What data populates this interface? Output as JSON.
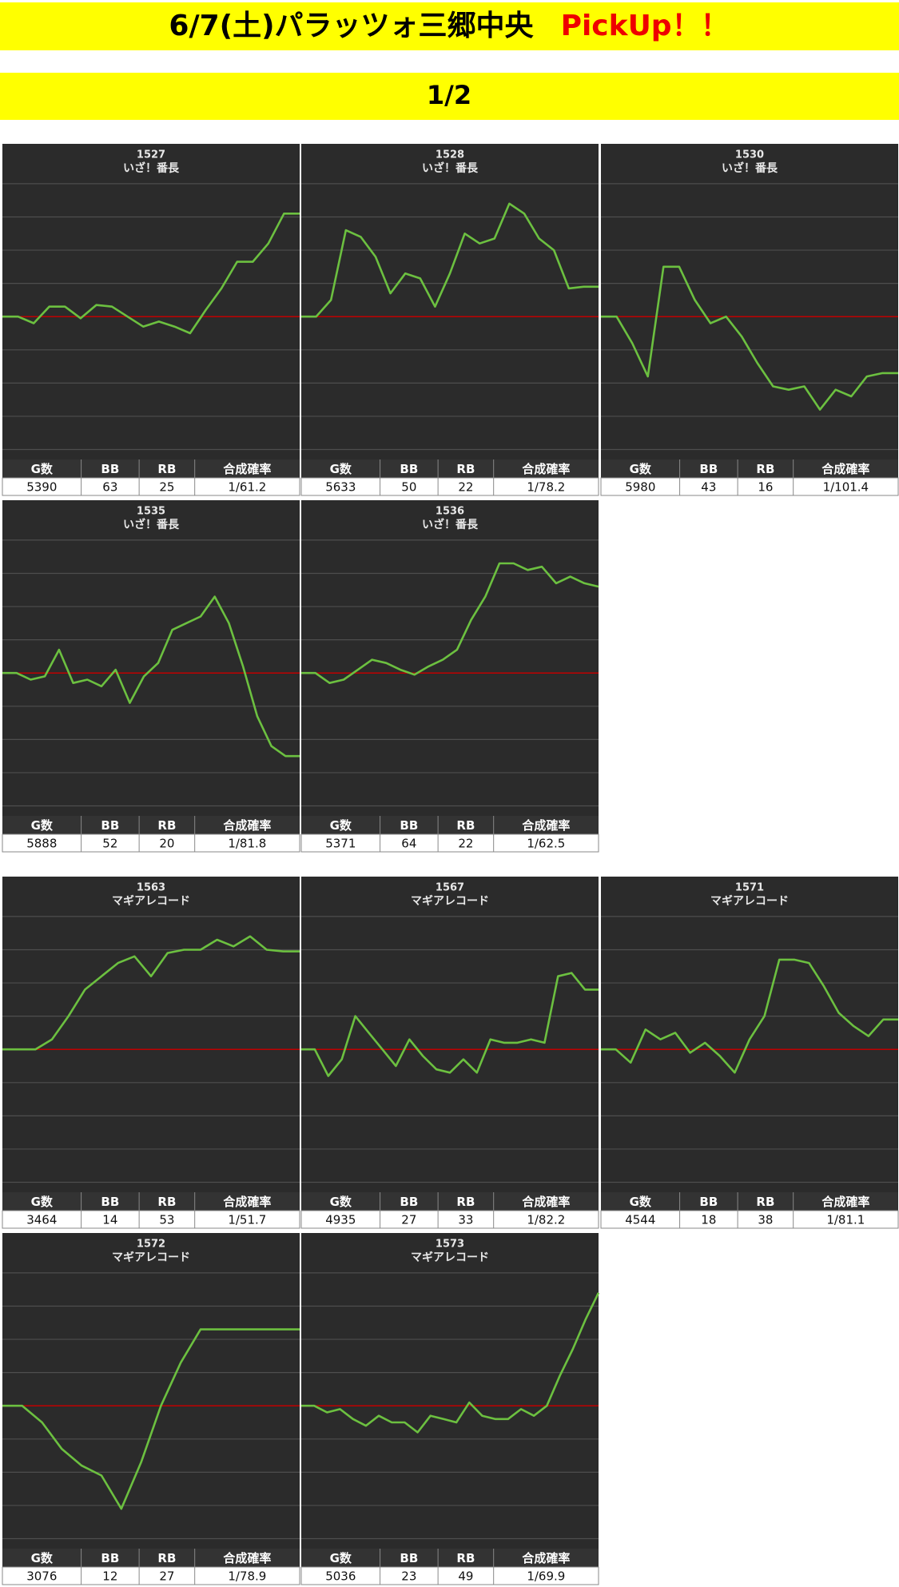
{
  "header": {
    "title": "6/7(土)パラッツォ三郷中央",
    "highlight": "PickUp！！"
  },
  "page_label": "1/2",
  "chart_data": [
    {
      "type": "line",
      "title": "1527",
      "subtitle": "いざ！番長",
      "color": "#6cc040",
      "background": "#2b2b2b",
      "grid_color": "#4e4e4e",
      "zero_line_color": "#c00000",
      "grid": true,
      "ylim": [
        -4.3,
        5.2
      ],
      "yticks": [
        -4,
        -3,
        -2,
        -1,
        0,
        1,
        2,
        3,
        4
      ],
      "values": [
        0,
        0,
        -0.2,
        0.3,
        0.3,
        -0.05,
        0.35,
        0.3,
        0,
        -0.3,
        -0.15,
        -0.3,
        -0.5,
        0.2,
        0.85,
        1.65,
        1.65,
        2.2,
        3.1,
        3.1
      ],
      "table": {
        "columns": [
          "G数",
          "BB",
          "RB",
          "合成確率"
        ],
        "row": [
          5390,
          63,
          25,
          "1/61.2"
        ]
      }
    },
    {
      "type": "line",
      "title": "1528",
      "subtitle": "いざ！番長",
      "color": "#6cc040",
      "background": "#2b2b2b",
      "grid_color": "#4e4e4e",
      "zero_line_color": "#c00000",
      "grid": true,
      "ylim": [
        -4.3,
        5.2
      ],
      "yticks": [
        -4,
        -3,
        -2,
        -1,
        0,
        1,
        2,
        3,
        4
      ],
      "values": [
        0,
        0,
        0.5,
        2.6,
        2.4,
        1.8,
        0.7,
        1.3,
        1.15,
        0.3,
        1.3,
        2.5,
        2.2,
        2.35,
        3.4,
        3.1,
        2.35,
        2.0,
        0.85,
        0.9,
        0.9
      ],
      "table": {
        "columns": [
          "G数",
          "BB",
          "RB",
          "合成確率"
        ],
        "row": [
          5633,
          50,
          22,
          "1/78.2"
        ]
      }
    },
    {
      "type": "line",
      "title": "1530",
      "subtitle": "いざ！番長",
      "color": "#6cc040",
      "background": "#2b2b2b",
      "grid_color": "#4e4e4e",
      "zero_line_color": "#c00000",
      "grid": true,
      "ylim": [
        -4.3,
        5.2
      ],
      "yticks": [
        -4,
        -3,
        -2,
        -1,
        0,
        1,
        2,
        3,
        4
      ],
      "values": [
        0,
        0,
        -0.8,
        -1.8,
        1.5,
        1.5,
        0.5,
        -0.2,
        0,
        -0.6,
        -1.4,
        -2.1,
        -2.2,
        -2.1,
        -2.8,
        -2.2,
        -2.4,
        -1.8,
        -1.7,
        -1.7
      ],
      "table": {
        "columns": [
          "G数",
          "BB",
          "RB",
          "合成確率"
        ],
        "row": [
          5980,
          43,
          16,
          "1/101.4"
        ]
      }
    },
    {
      "type": "line",
      "title": "1535",
      "subtitle": "いざ！番長",
      "color": "#6cc040",
      "background": "#2b2b2b",
      "grid_color": "#4e4e4e",
      "zero_line_color": "#c00000",
      "grid": true,
      "ylim": [
        -4.3,
        5.2
      ],
      "yticks": [
        -4,
        -3,
        -2,
        -1,
        0,
        1,
        2,
        3,
        4
      ],
      "values": [
        0,
        0,
        -0.2,
        -0.1,
        0.7,
        -0.3,
        -0.2,
        -0.4,
        0.1,
        -0.9,
        -0.1,
        0.3,
        1.3,
        1.5,
        1.7,
        2.3,
        1.5,
        0.2,
        -1.3,
        -2.2,
        -2.5,
        -2.5
      ],
      "table": {
        "columns": [
          "G数",
          "BB",
          "RB",
          "合成確率"
        ],
        "row": [
          5888,
          52,
          20,
          "1/81.8"
        ]
      }
    },
    {
      "type": "line",
      "title": "1536",
      "subtitle": "いざ！番長",
      "color": "#6cc040",
      "background": "#2b2b2b",
      "grid_color": "#4e4e4e",
      "zero_line_color": "#c00000",
      "grid": true,
      "ylim": [
        -4.3,
        5.2
      ],
      "yticks": [
        -4,
        -3,
        -2,
        -1,
        0,
        1,
        2,
        3,
        4
      ],
      "values": [
        0,
        0,
        -0.3,
        -0.2,
        0.1,
        0.4,
        0.3,
        0.1,
        -0.05,
        0.2,
        0.4,
        0.7,
        1.6,
        2.3,
        3.3,
        3.3,
        3.1,
        3.2,
        2.7,
        2.9,
        2.7,
        2.6
      ],
      "table": {
        "columns": [
          "G数",
          "BB",
          "RB",
          "合成確率"
        ],
        "row": [
          5371,
          64,
          22,
          "1/62.5"
        ]
      }
    },
    {
      "type": "line",
      "title": "1563",
      "subtitle": "マギアレコード",
      "color": "#6cc040",
      "background": "#2b2b2b",
      "grid_color": "#4e4e4e",
      "zero_line_color": "#c00000",
      "grid": true,
      "ylim": [
        -4.3,
        5.2
      ],
      "yticks": [
        -4,
        -3,
        -2,
        -1,
        0,
        1,
        2,
        3,
        4
      ],
      "values": [
        0,
        0,
        0,
        0.3,
        1.0,
        1.8,
        2.2,
        2.6,
        2.8,
        2.2,
        2.9,
        3.0,
        3.0,
        3.3,
        3.1,
        3.4,
        3.0,
        2.95,
        2.95
      ],
      "table": {
        "columns": [
          "G数",
          "BB",
          "RB",
          "合成確率"
        ],
        "row": [
          3464,
          14,
          53,
          "1/51.7"
        ]
      }
    },
    {
      "type": "line",
      "title": "1567",
      "subtitle": "マギアレコード",
      "color": "#6cc040",
      "background": "#2b2b2b",
      "grid_color": "#4e4e4e",
      "zero_line_color": "#c00000",
      "grid": true,
      "ylim": [
        -4.3,
        5.2
      ],
      "yticks": [
        -4,
        -3,
        -2,
        -1,
        0,
        1,
        2,
        3,
        4
      ],
      "values": [
        0,
        0,
        -0.8,
        -0.3,
        1.0,
        0.5,
        0,
        -0.5,
        0.3,
        -0.2,
        -0.6,
        -0.7,
        -0.3,
        -0.7,
        0.3,
        0.2,
        0.2,
        0.3,
        0.2,
        2.2,
        2.3,
        1.8,
        1.8
      ],
      "table": {
        "columns": [
          "G数",
          "BB",
          "RB",
          "合成確率"
        ],
        "row": [
          4935,
          27,
          33,
          "1/82.2"
        ]
      }
    },
    {
      "type": "line",
      "title": "1571",
      "subtitle": "マギアレコード",
      "color": "#6cc040",
      "background": "#2b2b2b",
      "grid_color": "#4e4e4e",
      "zero_line_color": "#c00000",
      "grid": true,
      "ylim": [
        -4.3,
        5.2
      ],
      "yticks": [
        -4,
        -3,
        -2,
        -1,
        0,
        1,
        2,
        3,
        4
      ],
      "values": [
        0,
        0,
        -0.4,
        0.6,
        0.3,
        0.5,
        -0.1,
        0.2,
        -0.2,
        -0.7,
        0.3,
        1.0,
        2.7,
        2.7,
        2.6,
        1.9,
        1.1,
        0.7,
        0.4,
        0.9,
        0.9
      ],
      "table": {
        "columns": [
          "G数",
          "BB",
          "RB",
          "合成確率"
        ],
        "row": [
          4544,
          18,
          38,
          "1/81.1"
        ]
      }
    },
    {
      "type": "line",
      "title": "1572",
      "subtitle": "マギアレコード",
      "color": "#6cc040",
      "background": "#2b2b2b",
      "grid_color": "#4e4e4e",
      "zero_line_color": "#c00000",
      "grid": true,
      "ylim": [
        -4.3,
        5.2
      ],
      "yticks": [
        -4,
        -3,
        -2,
        -1,
        0,
        1,
        2,
        3,
        4
      ],
      "values": [
        0,
        0,
        -0.5,
        -1.3,
        -1.8,
        -2.1,
        -3.1,
        -1.7,
        0,
        1.3,
        2.3,
        2.3,
        2.3,
        2.3,
        2.3,
        2.3
      ],
      "table": {
        "columns": [
          "G数",
          "BB",
          "RB",
          "合成確率"
        ],
        "row": [
          3076,
          12,
          27,
          "1/78.9"
        ]
      }
    },
    {
      "type": "line",
      "title": "1573",
      "subtitle": "マギアレコード",
      "color": "#6cc040",
      "background": "#2b2b2b",
      "grid_color": "#4e4e4e",
      "zero_line_color": "#c00000",
      "grid": true,
      "ylim": [
        -4.3,
        5.2
      ],
      "yticks": [
        -4,
        -3,
        -2,
        -1,
        0,
        1,
        2,
        3,
        4
      ],
      "values": [
        0,
        0,
        -0.2,
        -0.1,
        -0.4,
        -0.6,
        -0.3,
        -0.5,
        -0.5,
        -0.8,
        -0.3,
        -0.4,
        -0.5,
        0.1,
        -0.3,
        -0.4,
        -0.4,
        -0.1,
        -0.3,
        0,
        0.9,
        1.7,
        2.6,
        3.4
      ],
      "table": {
        "columns": [
          "G数",
          "BB",
          "RB",
          "合成確率"
        ],
        "row": [
          5036,
          23,
          49,
          "1/69.9"
        ]
      }
    }
  ]
}
